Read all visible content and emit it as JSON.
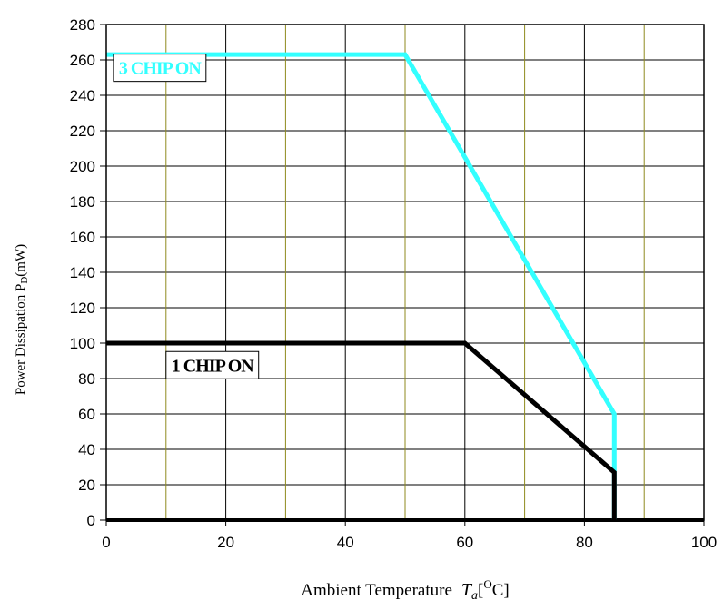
{
  "chart_data": {
    "type": "line",
    "title": "",
    "xlabel": {
      "prefix": "Ambient Temperature",
      "symbol": "T",
      "symbol_sub": "a",
      "unit_open": "[",
      "unit_sup": "O",
      "unit_close": "C]"
    },
    "ylabel": {
      "prefix": "Power Dissipation P",
      "sub": "D",
      "suffix": "(mW)"
    },
    "xlim": [
      0,
      100
    ],
    "ylim": [
      0,
      280
    ],
    "xticks": [
      0,
      20,
      40,
      60,
      80,
      100
    ],
    "xtick_labels": [
      "0",
      "20",
      "40",
      "60",
      "80",
      "100"
    ],
    "yticks": [
      0,
      20,
      40,
      60,
      80,
      100,
      120,
      140,
      160,
      180,
      200,
      220,
      240,
      260,
      280
    ],
    "ytick_labels": [
      "0",
      "20",
      "40",
      "60",
      "80",
      "100",
      "120",
      "140",
      "160",
      "180",
      "200",
      "220",
      "240",
      "260",
      "280"
    ],
    "x_minor_grid": [
      10,
      30,
      50,
      70,
      90
    ],
    "grid": true,
    "series": [
      {
        "label": "3 CHIP ON",
        "color": "#33ffff",
        "x": [
          0,
          50,
          85,
          85
        ],
        "y": [
          263,
          263,
          60,
          0
        ],
        "label_at": [
          1.2,
          253
        ]
      },
      {
        "label": "1 CHIP ON",
        "color": "#000000",
        "x": [
          0,
          60,
          85,
          85
        ],
        "y": [
          100,
          100,
          27,
          0
        ],
        "label_at": [
          10,
          85
        ]
      }
    ]
  }
}
